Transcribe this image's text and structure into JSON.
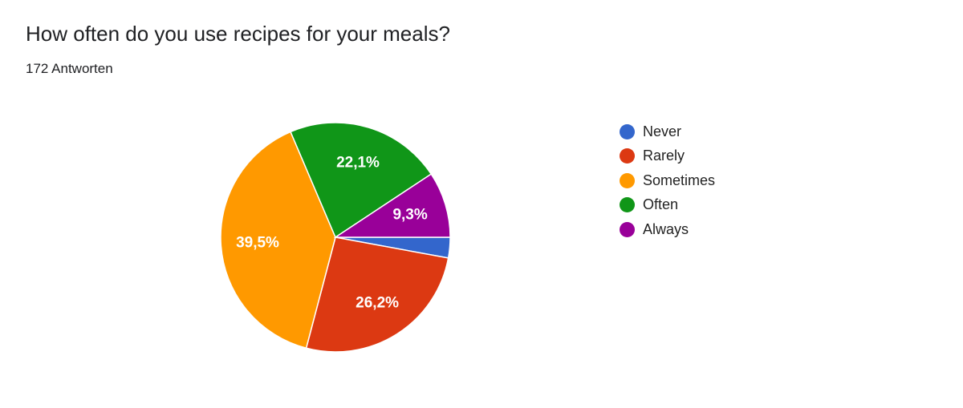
{
  "question": {
    "title": "How often do you use recipes for your meals?",
    "response_count": "172 Antworten"
  },
  "chart_data": {
    "type": "pie",
    "title": "How often do you use recipes for your meals?",
    "categories": [
      "Never",
      "Rarely",
      "Sometimes",
      "Often",
      "Always"
    ],
    "values": [
      2.9,
      26.2,
      39.5,
      22.1,
      9.3
    ],
    "value_unit": "%",
    "data_labels": [
      "",
      "26,2%",
      "39,5%",
      "22,1%",
      "9,3%"
    ],
    "colors": [
      "#3366cc",
      "#dc3912",
      "#ff9900",
      "#109618",
      "#990099"
    ],
    "legend_position": "right",
    "start_angle": "right (3 o'clock)",
    "direction": "clockwise"
  }
}
